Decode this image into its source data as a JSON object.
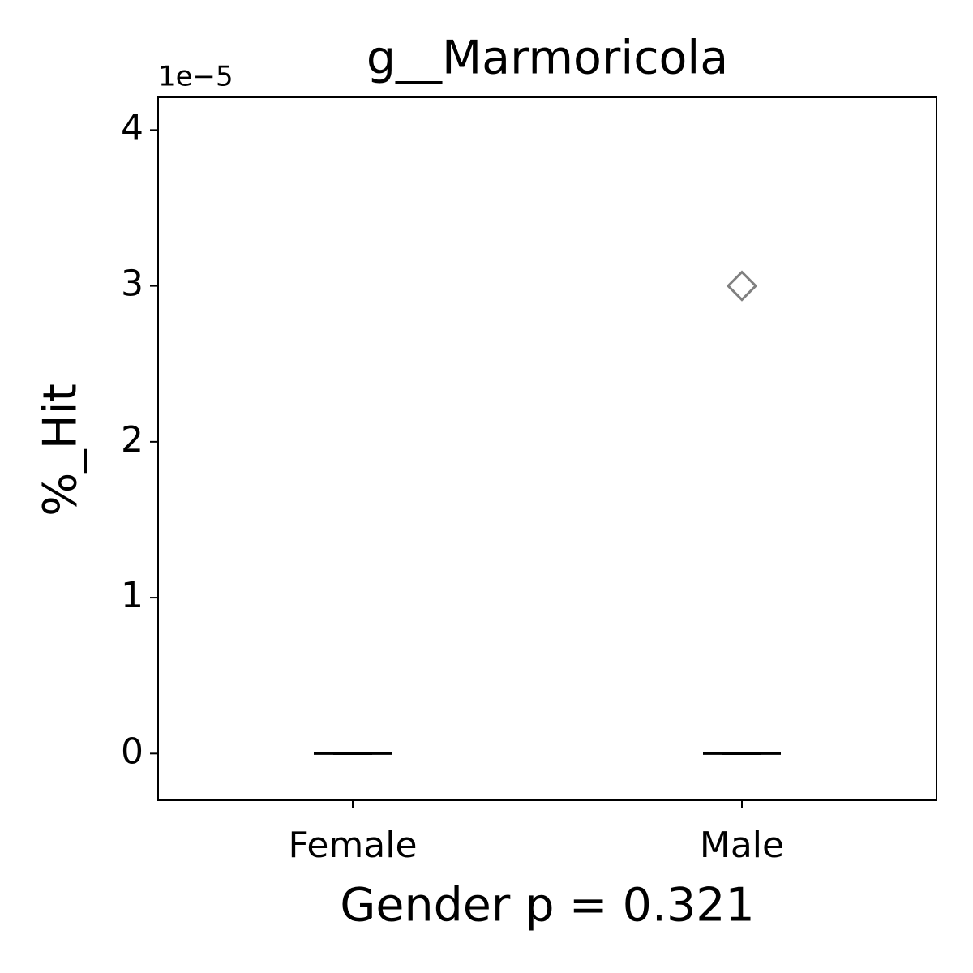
{
  "chart_data": {
    "type": "box",
    "title": "g__Marmoricola",
    "x_label": "Gender p = 0.321",
    "y_label": "%_Hit",
    "y_offset_label": "1e−5",
    "categories": [
      "Female",
      "Male"
    ],
    "q1": [
      0,
      0
    ],
    "medians": [
      0,
      0
    ],
    "q3": [
      0,
      0
    ],
    "whisker_low": [
      0,
      0
    ],
    "whisker_high": [
      0,
      0
    ],
    "outliers": [
      [],
      [
        3
      ]
    ],
    "color": "#000000",
    "outlier_color": "#808080",
    "ylim": [
      -0.3,
      4.21
    ],
    "yticks": [
      0,
      1,
      2,
      3,
      4
    ],
    "grid": false
  }
}
